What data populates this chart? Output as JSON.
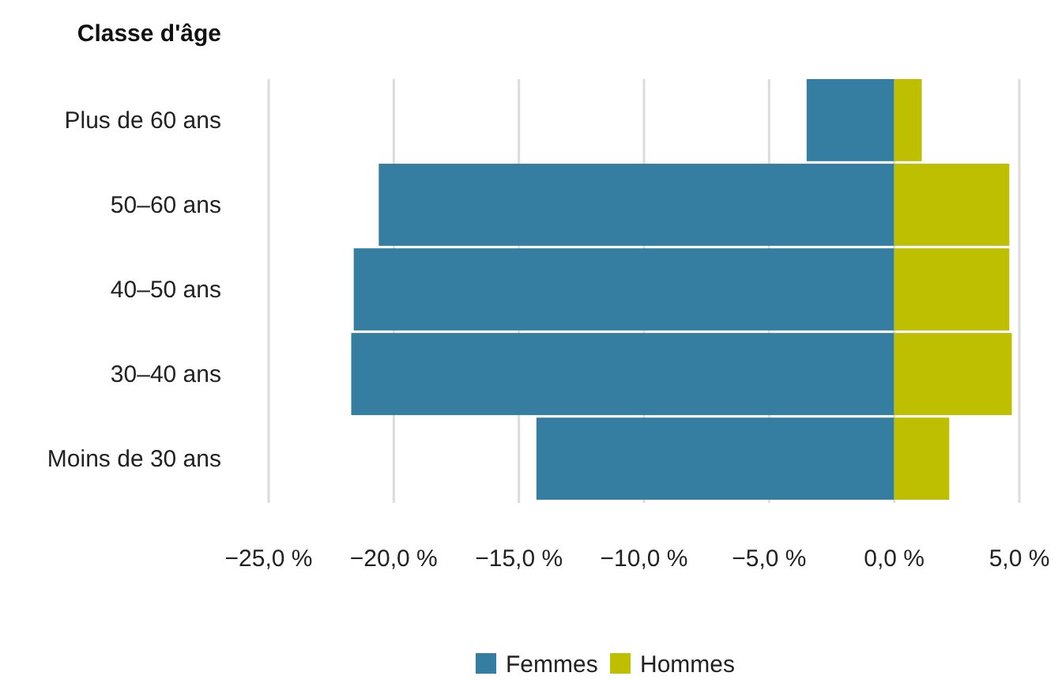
{
  "chart_data": {
    "type": "bar",
    "orientation": "horizontal",
    "stacked": true,
    "ylabel": "Classe d'âge",
    "categories": [
      "Plus de 60 ans",
      "50–60 ans",
      "40–50 ans",
      "30–40 ans",
      "Moins de 30 ans"
    ],
    "series": [
      {
        "name": "Femmes",
        "color": "#357ea2",
        "values": [
          -3.5,
          -20.6,
          -21.6,
          -21.7,
          -14.3
        ]
      },
      {
        "name": "Hommes",
        "color": "#bdbf00",
        "values": [
          1.1,
          4.6,
          4.6,
          4.7,
          2.2
        ]
      }
    ],
    "xlim": [
      -25,
      5
    ],
    "xticks": [
      {
        "value": -25,
        "label": "−25,0 %"
      },
      {
        "value": -20,
        "label": "−20,0 %"
      },
      {
        "value": -15,
        "label": "−15,0 %"
      },
      {
        "value": -10,
        "label": "−10,0 %"
      },
      {
        "value": -5,
        "label": "−5,0 %"
      },
      {
        "value": 0,
        "label": "0,0 %"
      },
      {
        "value": 5,
        "label": "5,0 %"
      }
    ],
    "grid": "x",
    "legend": "bottom"
  }
}
